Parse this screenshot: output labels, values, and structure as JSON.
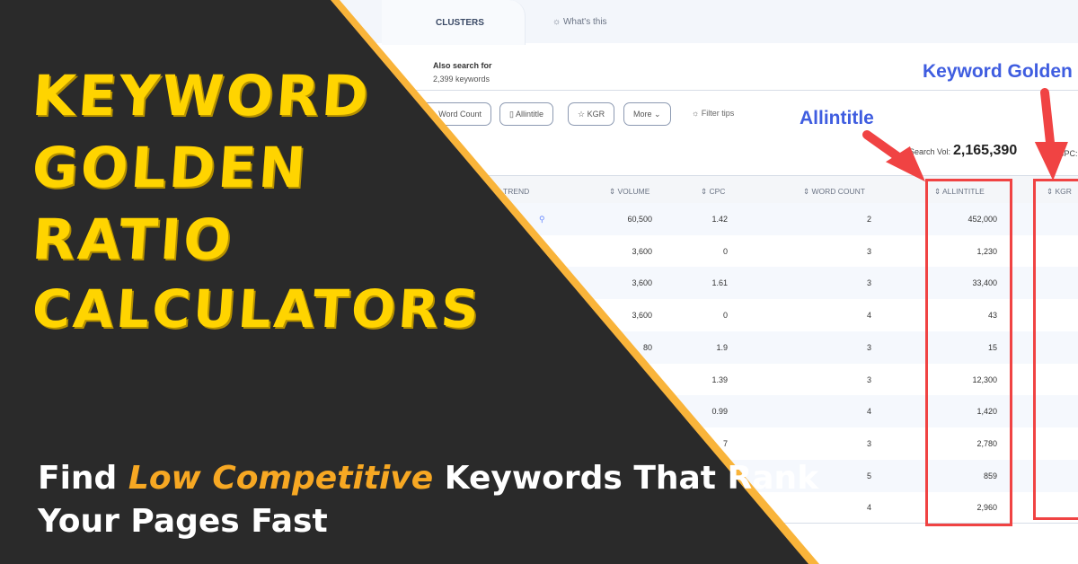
{
  "ui": {
    "tab_label": "CLUSTERS",
    "whats_this": "What's this",
    "also_search_for": "Also search for",
    "keyword_count": "2,399 keywords",
    "chips": [
      "Word Count",
      "Allintitle",
      "KGR",
      "More"
    ],
    "filter_tips": "Filter tips",
    "search_vol_label": "Search Vol:",
    "search_vol_value": "2,165,390",
    "cpc_label": "CPC:",
    "columns": [
      "TREND",
      "VOLUME",
      "CPC",
      "WORD COUNT",
      "ALLINTITLE",
      "KGR"
    ],
    "rows": [
      {
        "volume": "60,500",
        "cpc": "1.42",
        "word_count": "2",
        "allintitle": "452,000"
      },
      {
        "volume": "3,600",
        "cpc": "0",
        "word_count": "3",
        "allintitle": "1,230"
      },
      {
        "volume": "3,600",
        "cpc": "1.61",
        "word_count": "3",
        "allintitle": "33,400"
      },
      {
        "volume": "3,600",
        "cpc": "0",
        "word_count": "4",
        "allintitle": "43"
      },
      {
        "volume": "80",
        "cpc": "1.9",
        "word_count": "3",
        "allintitle": "15"
      },
      {
        "volume": "",
        "cpc": "1.39",
        "word_count": "3",
        "allintitle": "12,300"
      },
      {
        "volume": "",
        "cpc": "0.99",
        "word_count": "4",
        "allintitle": "1,420"
      },
      {
        "volume": "",
        "cpc": "7",
        "word_count": "3",
        "allintitle": "2,780"
      },
      {
        "volume": "",
        "cpc": "",
        "word_count": "5",
        "allintitle": "859"
      },
      {
        "volume": "",
        "cpc": "",
        "word_count": "4",
        "allintitle": "2,960"
      }
    ]
  },
  "annotations": {
    "allintitle": "Allintitle",
    "kgr": "Keyword Golden"
  },
  "banner": {
    "headline": [
      "KEYWORD",
      "GOLDEN",
      "RATIO",
      "CALCULATORS"
    ],
    "sub_pre": "Find ",
    "sub_highlight": "Low Competitive",
    "sub_post": " Keywords That Rank",
    "sub_line2": "Your Pages Fast"
  },
  "colors": {
    "dark": "#2a2a2a",
    "orange": "#f9b43a",
    "yellow": "#ffd400",
    "annotation_blue": "#3f5de0",
    "highlight_red": "#f04343"
  }
}
